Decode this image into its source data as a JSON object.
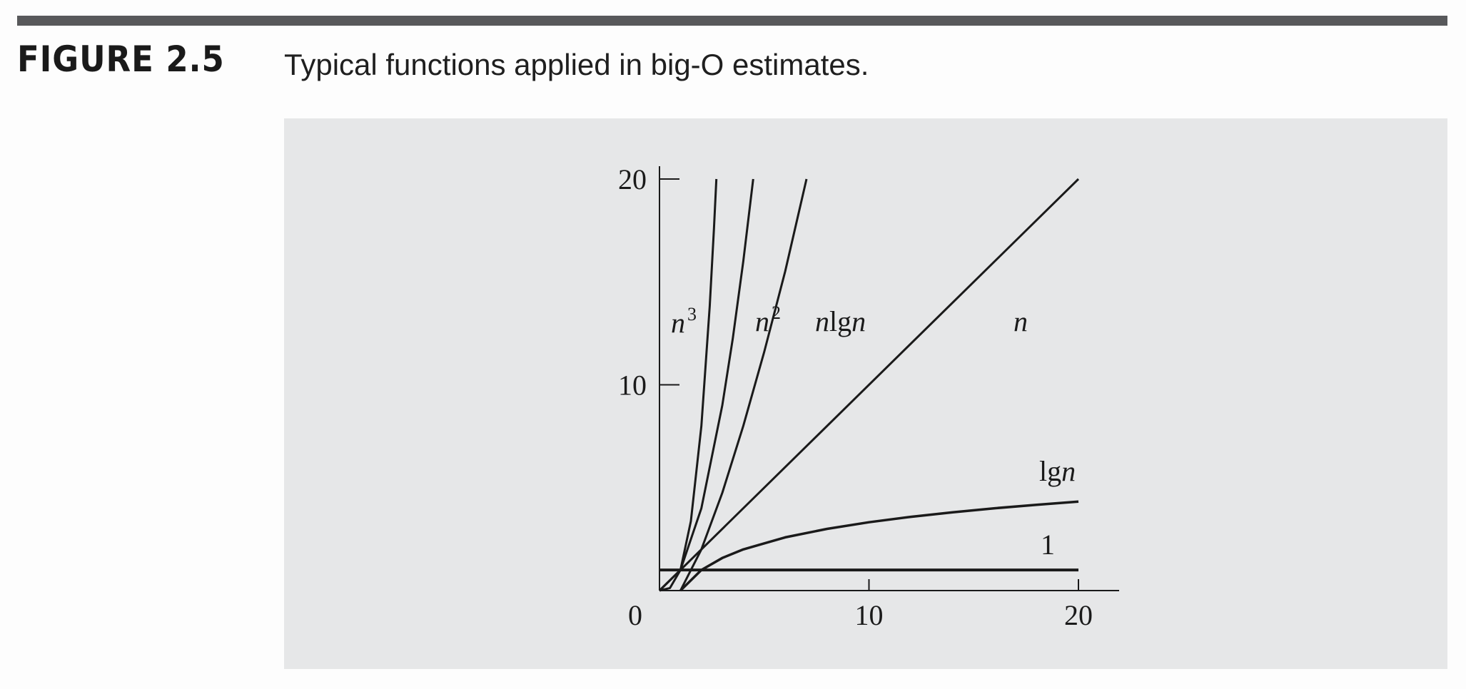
{
  "figure": {
    "label": "FIGURE 2.5",
    "caption": "Typical functions applied in big-O estimates."
  },
  "colors": {
    "rule": "#58595b",
    "panel": "#e6e7e8",
    "ink": "#1a1a1a"
  },
  "chart_data": {
    "type": "line",
    "title": "",
    "xlabel": "",
    "ylabel": "",
    "xlim": [
      0,
      20
    ],
    "ylim": [
      0,
      20
    ],
    "x_ticks": [
      0,
      10,
      20
    ],
    "y_ticks": [
      10,
      20
    ],
    "x_tick_labels": [
      "0",
      "10",
      "20"
    ],
    "y_tick_labels": [
      "10",
      "20"
    ],
    "grid": false,
    "series": [
      {
        "id": "n3",
        "label_base": "n",
        "label_sup": "3",
        "formula": "n^3",
        "x": [
          0,
          0.5,
          1,
          1.5,
          2,
          2.4,
          2.6,
          2.714
        ],
        "y": [
          0,
          0.125,
          1,
          3.375,
          8,
          13.824,
          17.576,
          20
        ]
      },
      {
        "id": "n2",
        "label_base": "n",
        "label_sup": "2",
        "formula": "n^2",
        "x": [
          0,
          1,
          2,
          3,
          3.5,
          4,
          4.472
        ],
        "y": [
          0,
          1,
          4,
          9,
          12.25,
          16,
          20
        ]
      },
      {
        "id": "nlgn",
        "label_base": "n",
        "label_mid": "lg",
        "label_end": "n",
        "formula": "n lg n",
        "x": [
          1,
          2,
          3,
          4,
          5,
          6,
          7.02
        ],
        "y": [
          0,
          2,
          4.75,
          8,
          11.61,
          15.51,
          20
        ]
      },
      {
        "id": "n",
        "label_base": "n",
        "formula": "n",
        "x": [
          0,
          20
        ],
        "y": [
          0,
          20
        ]
      },
      {
        "id": "lgn",
        "label_mid": "lg",
        "label_end": "n",
        "formula": "lg n",
        "x": [
          1,
          2,
          3,
          4,
          6,
          8,
          10,
          12,
          14,
          16,
          18,
          20
        ],
        "y": [
          0,
          1,
          1.585,
          2,
          2.585,
          3,
          3.322,
          3.585,
          3.807,
          4,
          4.17,
          4.322
        ]
      },
      {
        "id": "one",
        "label_text": "1",
        "formula": "1",
        "x": [
          0,
          20
        ],
        "y": [
          1,
          1
        ]
      }
    ]
  }
}
